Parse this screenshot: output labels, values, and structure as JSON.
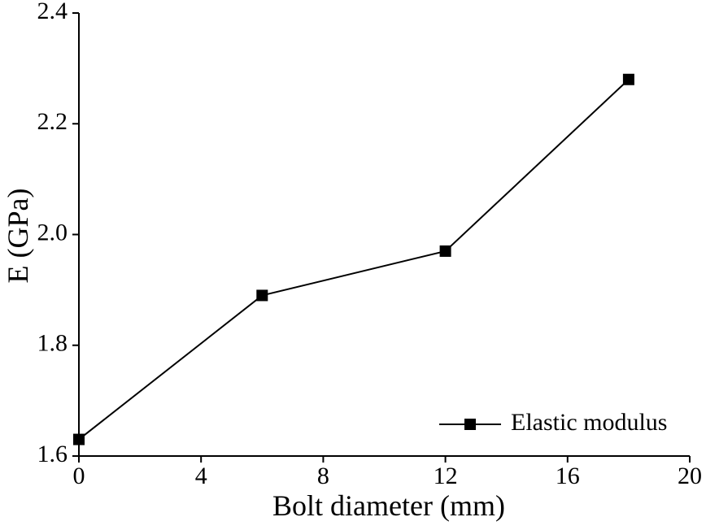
{
  "chart_data": {
    "type": "line",
    "x_label": "Bolt diameter (mm)",
    "y_label": "E (GPa)",
    "x": [
      0,
      6,
      12,
      18
    ],
    "series": [
      {
        "name": "Elastic modulus",
        "color": "#000000",
        "values": [
          1.63,
          1.89,
          1.97,
          2.28
        ]
      }
    ],
    "xlim": [
      0,
      20
    ],
    "xticks": [
      0,
      4,
      8,
      12,
      16,
      20
    ],
    "ylim": [
      1.6,
      2.4
    ],
    "yticks": [
      1.6,
      1.8,
      {
        "value": 2,
        "label": "2.0"
      },
      2.2,
      2.4
    ],
    "legend": "lower-right",
    "grid": false
  }
}
